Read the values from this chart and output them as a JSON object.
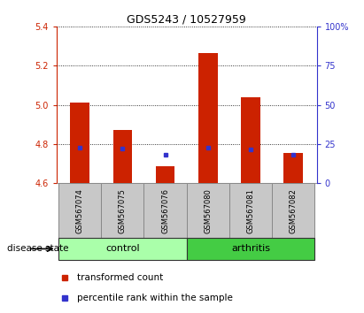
{
  "title": "GDS5243 / 10527959",
  "samples": [
    "GSM567074",
    "GSM567075",
    "GSM567076",
    "GSM567080",
    "GSM567081",
    "GSM567082"
  ],
  "ylim_left": [
    4.6,
    5.4
  ],
  "ylim_right": [
    0,
    100
  ],
  "yticks_left": [
    4.6,
    4.8,
    5.0,
    5.2,
    5.4
  ],
  "yticks_right": [
    0,
    25,
    50,
    75,
    100
  ],
  "red_bar_tops": [
    5.01,
    4.87,
    4.685,
    5.265,
    5.04,
    4.755
  ],
  "blue_sq_vals": [
    4.782,
    4.775,
    4.745,
    4.781,
    4.773,
    4.745
  ],
  "bar_bottom": 4.6,
  "red_color": "#CC2200",
  "blue_color": "#3333CC",
  "bar_width": 0.45,
  "left_tick_color": "#CC2200",
  "right_tick_color": "#3333CC",
  "disease_label": "disease state",
  "legend_red": "transformed count",
  "legend_blue": "percentile rank within the sample",
  "xlabel_area_color": "#C8C8C8",
  "control_color": "#AAFFAA",
  "arthritis_color": "#44CC44",
  "group_defs": [
    {
      "label": "control",
      "start": 0,
      "end": 2
    },
    {
      "label": "arthritis",
      "start": 3,
      "end": 5
    }
  ]
}
